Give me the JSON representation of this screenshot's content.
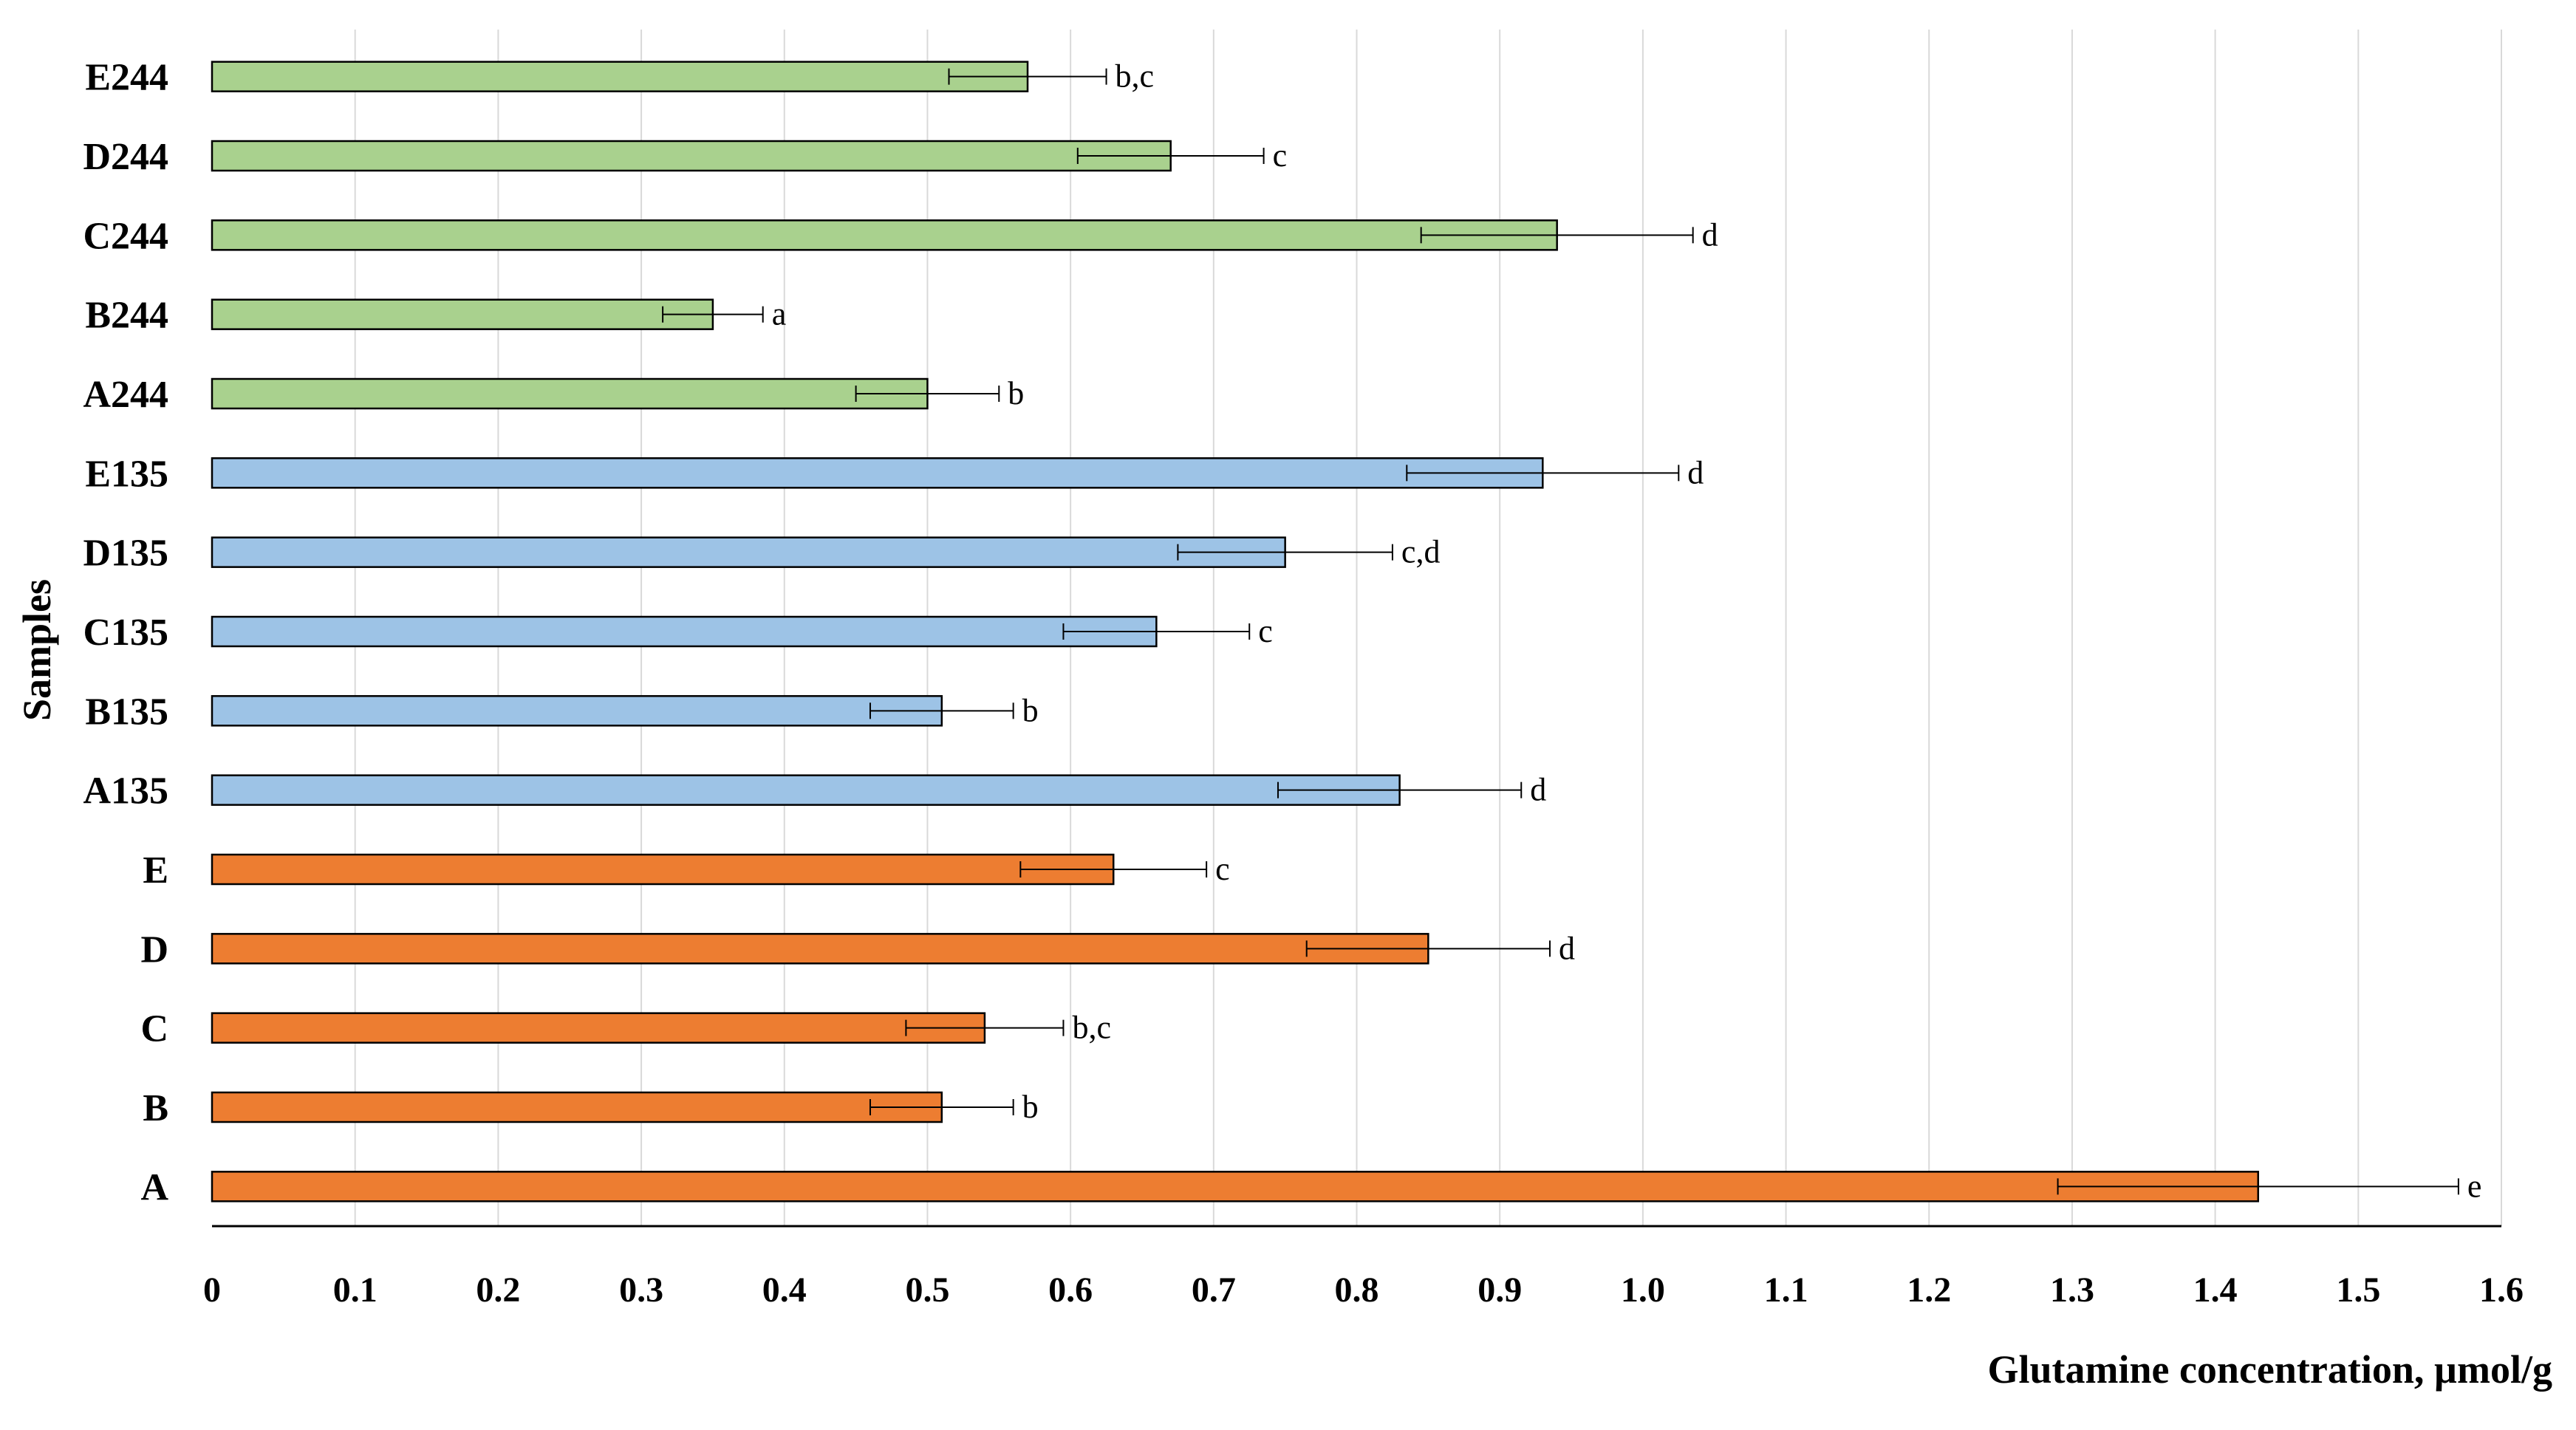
{
  "chart_data": {
    "type": "bar",
    "orientation": "horizontal",
    "title": "",
    "xlabel": "Glutamine concentration, µmol/g",
    "ylabel": "Samples",
    "xlim": [
      0,
      1.6
    ],
    "xticks": [
      0,
      0.1,
      0.2,
      0.3,
      0.4,
      0.5,
      0.6,
      0.7,
      0.8,
      0.9,
      1.0,
      1.1,
      1.2,
      1.3,
      1.4,
      1.5,
      1.6
    ],
    "xtick_labels": [
      "0",
      "0.1",
      "0.2",
      "0.3",
      "0.4",
      "0.5",
      "0.6",
      "0.7",
      "0.8",
      "0.9",
      "1.0",
      "1.1",
      "1.2",
      "1.3",
      "1.4",
      "1.5",
      "1.6"
    ],
    "grid": "vertical",
    "colors": {
      "base": "#ED7D31",
      "d135": "#9DC3E6",
      "d244": "#A9D18E",
      "stroke": "#000000",
      "grid": "#D9D9D9"
    },
    "categories": [
      "A",
      "B",
      "C",
      "D",
      "E",
      "A135",
      "B135",
      "C135",
      "D135",
      "E135",
      "A244",
      "B244",
      "C244",
      "D244",
      "E244"
    ],
    "groups": [
      "base",
      "base",
      "base",
      "base",
      "base",
      "d135",
      "d135",
      "d135",
      "d135",
      "d135",
      "d244",
      "d244",
      "d244",
      "d244",
      "d244"
    ],
    "values": [
      1.43,
      0.51,
      0.54,
      0.85,
      0.63,
      0.83,
      0.51,
      0.66,
      0.75,
      0.93,
      0.5,
      0.35,
      0.94,
      0.67,
      0.57
    ],
    "errors": [
      0.14,
      0.05,
      0.055,
      0.085,
      0.065,
      0.085,
      0.05,
      0.065,
      0.075,
      0.095,
      0.05,
      0.035,
      0.095,
      0.065,
      0.055
    ],
    "significance": [
      "e",
      "b",
      "b,c",
      "d",
      "c",
      "d",
      "b",
      "c",
      "c,d",
      "d",
      "b",
      "a",
      "d",
      "c",
      "b,c"
    ]
  }
}
